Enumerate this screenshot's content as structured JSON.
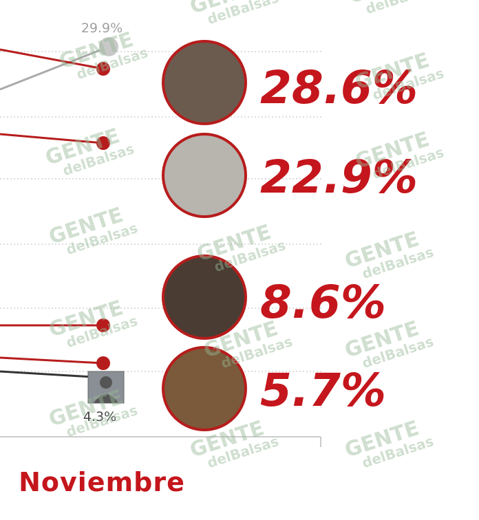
{
  "small_labels": [
    "29.9%",
    "4.3%"
  ],
  "big_labels": [
    "28.6%",
    "22.9%",
    "8.6%",
    "5.7%"
  ],
  "month": "Noviembre",
  "watermark": {
    "top": "GENTE",
    "bottom": "delBalsas"
  }
}
